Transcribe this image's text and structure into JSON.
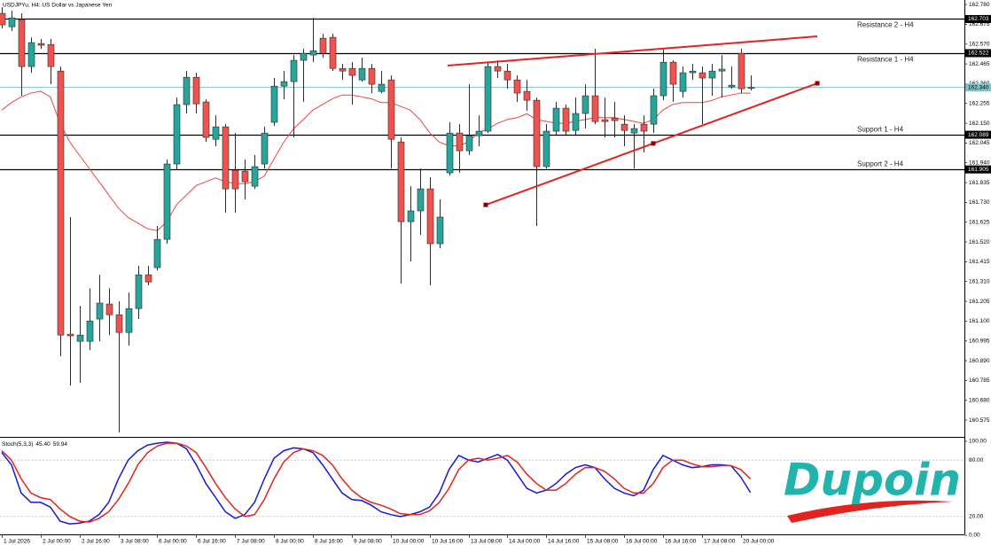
{
  "chart_data": [
    {
      "type": "candlestick",
      "title": "USDJPYu, H4:  US Dollar vs Japanese Yen",
      "categories": [
        "1 Jul 2026",
        null,
        null,
        null,
        "2 Jul 00:00",
        null,
        null,
        null,
        "2 Jul 16:00",
        null,
        null,
        null,
        "3 Jul 08:00",
        null,
        null,
        null,
        "6 Jul 00:00",
        null,
        null,
        null,
        "6 Jul 16:00",
        null,
        null,
        null,
        "7 Jul 08:00",
        null,
        null,
        null,
        "8 Jul 00:00",
        null,
        null,
        null,
        "8 Jul 16:00",
        null,
        null,
        null,
        "9 Jul 08:00",
        null,
        null,
        null,
        "10 Jul 00:00",
        null,
        null,
        null,
        "10 Jul 16:00",
        null,
        null,
        null,
        "13 Jul 08:00",
        null,
        null,
        null,
        "14 Jul 00:00",
        null,
        null,
        null,
        "14 Jul 16:00",
        null,
        null,
        null,
        "15 Jul 08:00",
        null,
        null,
        null,
        "16 Jul 00:00",
        null,
        null,
        null,
        "16 Jul 16:00",
        null,
        null,
        null,
        "17 Jul 08:00",
        null,
        null,
        null,
        "20 Jul 00:00",
        null
      ],
      "open": [
        162.733,
        162.662,
        162.7,
        162.451,
        162.573,
        162.568,
        162.427,
        161.031,
        160.993,
        160.993,
        161.111,
        161.191,
        161.134,
        161.04,
        161.167,
        161.346,
        161.384,
        161.534,
        161.934,
        162.249,
        162.394,
        162.263,
        162.065,
        162.131,
        161.901,
        161.896,
        161.816,
        161.934,
        162.155,
        162.347,
        162.371,
        162.484,
        162.512,
        162.601,
        162.606,
        162.441,
        162.441,
        162.38,
        162.441,
        162.319,
        162.38,
        162.051,
        161.628,
        161.685,
        161.802,
        161.511,
        161.887,
        162.098,
        162.004,
        162.084,
        162.108,
        162.451,
        162.427,
        162.38,
        162.319,
        162.272,
        161.92,
        162.108,
        162.23,
        162.112,
        162.202,
        162.296,
        162.169,
        162.178,
        162.145,
        162.098,
        162.145,
        162.145,
        162.296,
        162.474,
        162.319,
        162.418,
        162.418,
        162.39,
        162.427,
        162.343,
        162.521,
        162.338
      ],
      "high": [
        162.766,
        162.747,
        162.733,
        162.606,
        162.597,
        162.597,
        162.451,
        161.652,
        161.181,
        161.275,
        161.346,
        161.275,
        161.205,
        161.252,
        161.393,
        161.393,
        161.605,
        161.957,
        162.286,
        162.427,
        162.418,
        162.277,
        162.192,
        162.145,
        162.098,
        161.957,
        161.981,
        162.131,
        162.39,
        162.427,
        162.512,
        162.545,
        162.709,
        162.625,
        162.625,
        162.465,
        162.474,
        162.498,
        162.465,
        162.427,
        162.404,
        162.075,
        161.816,
        161.91,
        161.863,
        161.746,
        162.155,
        162.145,
        162.357,
        162.192,
        162.474,
        162.484,
        162.465,
        162.404,
        162.38,
        162.286,
        162.145,
        162.263,
        162.249,
        162.286,
        162.357,
        162.545,
        162.286,
        162.263,
        162.192,
        162.145,
        162.192,
        162.333,
        162.545,
        162.484,
        162.451,
        162.465,
        162.451,
        162.465,
        162.512,
        162.451,
        162.545,
        162.404
      ],
      "low": [
        162.653,
        162.639,
        162.296,
        162.418,
        162.545,
        162.357,
        160.914,
        160.758,
        160.772,
        160.946,
        160.993,
        161.026,
        160.509,
        160.97,
        161.111,
        161.29,
        161.37,
        161.511,
        161.901,
        162.202,
        162.202,
        162.051,
        162.028,
        161.675,
        161.675,
        161.746,
        161.802,
        161.91,
        162.136,
        162.277,
        162.075,
        162.263,
        162.474,
        162.498,
        162.427,
        162.38,
        162.249,
        162.371,
        162.31,
        162.31,
        161.91,
        161.299,
        161.417,
        161.558,
        161.29,
        161.487,
        161.873,
        161.887,
        161.981,
        162.028,
        162.098,
        162.39,
        162.333,
        162.263,
        162.216,
        161.605,
        161.91,
        162.089,
        162.089,
        162.089,
        162.122,
        162.145,
        162.075,
        162.075,
        162.028,
        161.91,
        161.995,
        162.098,
        162.272,
        162.263,
        162.286,
        162.38,
        162.145,
        162.296,
        162.286,
        162.333,
        162.31,
        162.324
      ],
      "close": [
        162.672,
        162.709,
        162.451,
        162.578,
        162.564,
        162.451,
        161.026,
        161.022,
        161.026,
        161.101,
        161.196,
        161.134,
        161.04,
        161.167,
        161.346,
        161.308,
        161.534,
        161.934,
        162.249,
        162.394,
        162.253,
        162.075,
        162.131,
        161.802,
        161.802,
        161.84,
        161.92,
        162.098,
        162.347,
        162.371,
        162.484,
        162.521,
        162.535,
        162.521,
        162.441,
        162.427,
        162.404,
        162.441,
        162.357,
        162.357,
        162.065,
        161.628,
        161.685,
        161.802,
        161.511,
        161.652,
        162.098,
        162.004,
        162.084,
        162.108,
        162.451,
        162.427,
        162.38,
        162.31,
        162.272,
        161.92,
        162.108,
        162.23,
        162.108,
        162.202,
        162.296,
        162.159,
        162.159,
        162.164,
        162.112,
        162.122,
        162.108,
        162.296,
        162.474,
        162.357,
        162.418,
        162.427,
        162.39,
        162.427,
        162.437,
        162.352,
        162.333,
        162.34
      ],
      "bull_color": "#26a69a",
      "bear_color": "#ef5350",
      "xlim": [
        -0.18,
        99
      ],
      "ylim": [
        160.486,
        162.804
      ],
      "yticks": [
        {
          "value": 162.78,
          "label": "162.780"
        },
        162.675,
        {
          "value": 162.57,
          "label": "162.570"
        },
        162.465,
        {
          "value": 162.36,
          "label": "162.360"
        },
        162.255,
        {
          "value": 162.15,
          "label": "162.150"
        },
        162.045,
        {
          "value": 161.94,
          "label": "161.940"
        },
        161.835,
        {
          "value": 161.73,
          "label": "161.730"
        },
        161.625,
        {
          "value": 161.52,
          "label": "161.520"
        },
        161.415,
        {
          "value": 161.31,
          "label": "161.310"
        },
        161.205,
        {
          "value": 161.1,
          "label": "161.100"
        },
        160.995,
        {
          "value": 160.89,
          "label": "160.890"
        },
        160.785,
        {
          "value": 160.68,
          "label": "160.680"
        },
        160.575
      ],
      "overlays": [
        {
          "color": "#e8483f",
          "values": [
            162.22,
            162.26,
            162.29,
            162.31,
            162.32,
            162.29,
            162.15,
            162.05,
            161.98,
            161.91,
            161.84,
            161.77,
            161.7,
            161.65,
            161.62,
            161.59,
            161.58,
            161.63,
            161.72,
            161.77,
            161.82,
            161.84,
            161.86,
            161.84,
            161.83,
            161.83,
            161.84,
            161.87,
            161.96,
            162.05,
            162.12,
            162.17,
            162.22,
            162.25,
            162.28,
            162.3,
            162.3,
            162.29,
            162.28,
            162.26,
            162.26,
            162.24,
            162.22,
            162.17,
            162.1,
            162.05,
            162.03,
            162.03,
            162.05,
            162.1,
            162.12,
            162.15,
            162.17,
            162.18,
            162.2,
            162.17,
            162.16,
            162.15,
            162.15,
            162.16,
            162.17,
            162.18,
            162.18,
            162.18,
            162.17,
            162.16,
            162.15,
            162.17,
            162.22,
            162.25,
            162.26,
            162.26,
            162.26,
            162.27,
            162.29,
            162.3,
            162.31,
            162.31
          ]
        }
      ],
      "levels": [
        {
          "name": "Resistance 2 - H4",
          "value": 162.703,
          "label_position": "below"
        },
        {
          "name": "Resistance 1 - H4",
          "value": 162.522,
          "label_position": "below"
        },
        {
          "name": "Support 1 - H4",
          "value": 162.089,
          "label_position": "above"
        },
        {
          "name": "Support 2 - H4",
          "value": 161.905,
          "label_position": "above"
        }
      ],
      "level_color": "#000000",
      "current_price": {
        "value": 162.34,
        "label": "162.340",
        "color": "#7fc3c8"
      },
      "trendlines": [
        {
          "color": "#e3231f",
          "x": [
            45.85,
            83.87
          ],
          "y": [
            162.456,
            162.611
          ],
          "markers": false
        },
        {
          "color": "#e3231f",
          "x": [
            49.77,
            67,
            83.87
          ],
          "y": [
            161.717,
            162.043,
            162.362
          ],
          "markers": true
        }
      ]
    },
    {
      "type": "line",
      "title": "Stoch(5,3,3)",
      "current_labels": [
        "45.40",
        "59.94"
      ],
      "series": [
        {
          "color": "#1717d6",
          "values": [
            88,
            75,
            45,
            35,
            35,
            30,
            15,
            12,
            13,
            15,
            22,
            35,
            60,
            80,
            90,
            96,
            98,
            99,
            98,
            92,
            75,
            55,
            40,
            25,
            18,
            22,
            35,
            60,
            82,
            90,
            93,
            92,
            88,
            75,
            60,
            45,
            38,
            37,
            32,
            25,
            22,
            20,
            22,
            25,
            30,
            45,
            70,
            85,
            80,
            78,
            82,
            86,
            80,
            65,
            50,
            45,
            48,
            55,
            65,
            72,
            75,
            72,
            60,
            50,
            45,
            42,
            48,
            70,
            85,
            80,
            75,
            72,
            73,
            75,
            75,
            74,
            62,
            45.4
          ]
        },
        {
          "color": "#e3231f",
          "values": [
            90,
            80,
            60,
            45,
            40,
            38,
            28,
            20,
            15,
            14,
            18,
            25,
            38,
            55,
            75,
            88,
            95,
            98,
            98,
            95,
            88,
            72,
            55,
            40,
            28,
            20,
            22,
            38,
            60,
            78,
            88,
            92,
            90,
            85,
            75,
            60,
            48,
            40,
            35,
            32,
            28,
            23,
            22,
            22,
            26,
            35,
            50,
            70,
            80,
            82,
            80,
            82,
            85,
            78,
            65,
            55,
            48,
            48,
            55,
            65,
            72,
            72,
            68,
            60,
            50,
            45,
            45,
            55,
            72,
            80,
            80,
            76,
            73,
            73,
            74,
            74,
            70,
            59.94
          ]
        }
      ],
      "ylim": [
        0,
        100
      ],
      "yticks": [
        {
          "value": 100,
          "label": "100.00"
        },
        {
          "value": 80,
          "label": "80.00"
        },
        {
          "value": 20,
          "label": "20.00"
        },
        {
          "value": 0,
          "label": "0.00"
        }
      ],
      "grid": true
    }
  ],
  "logo": "Dupoin"
}
